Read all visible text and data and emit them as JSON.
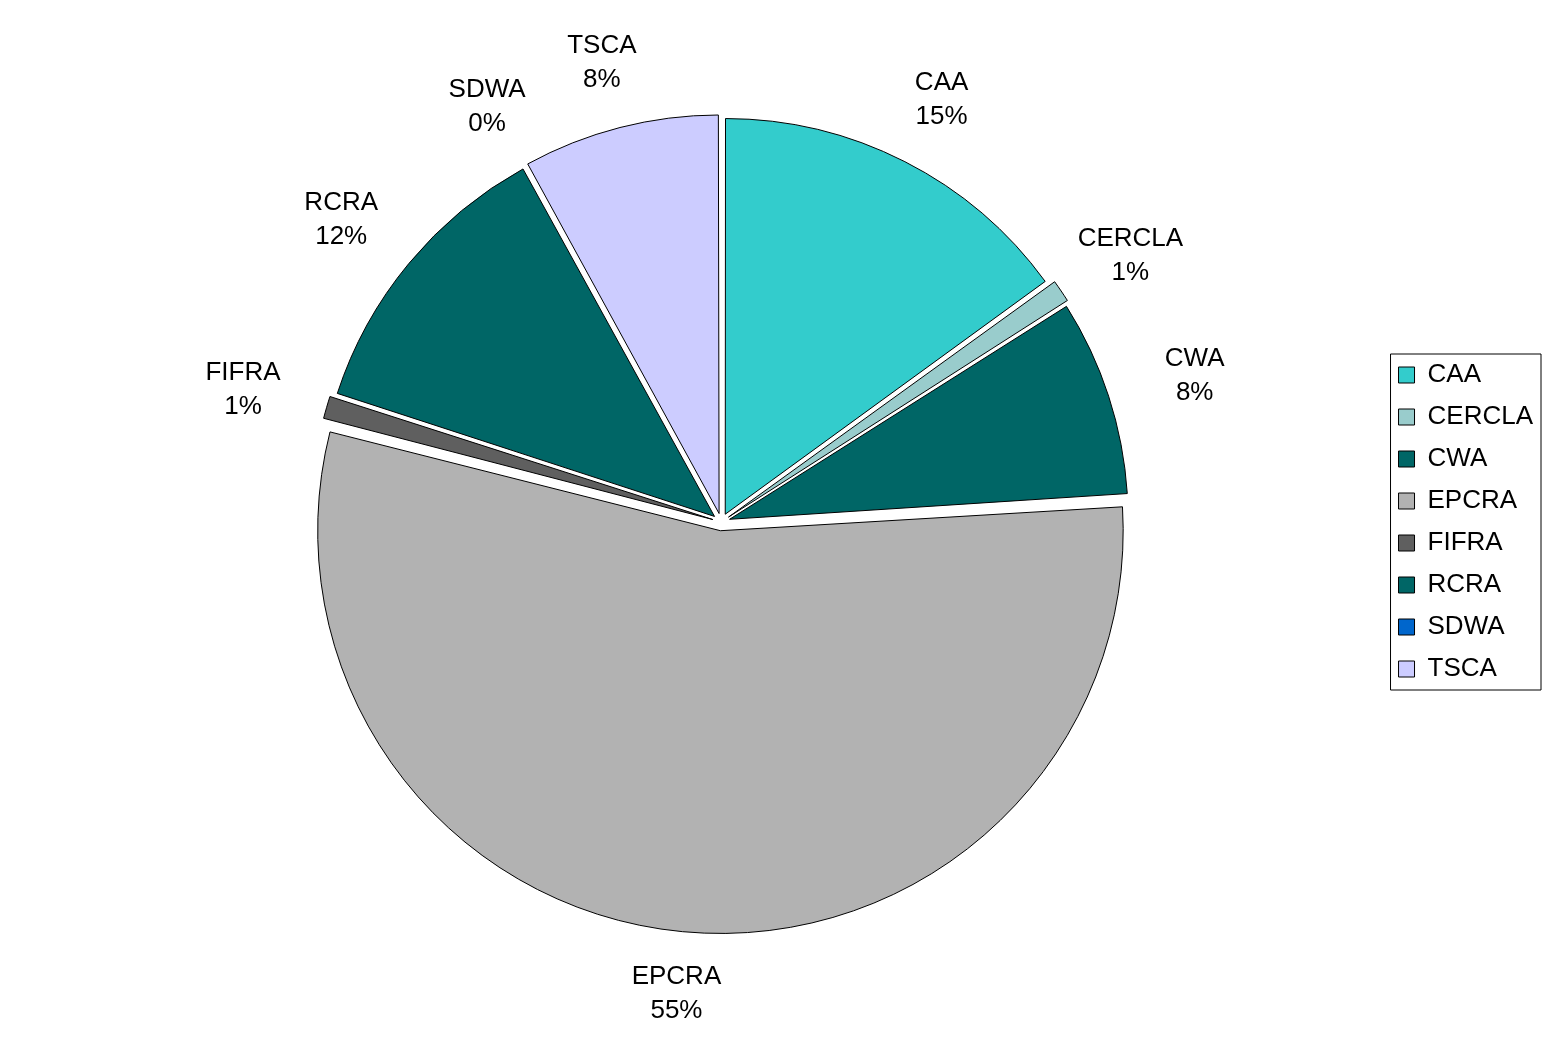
{
  "chart_data": {
    "type": "pie",
    "categories": [
      "CAA",
      "CERCLA",
      "CWA",
      "EPCRA",
      "FIFRA",
      "RCRA",
      "SDWA",
      "TSCA"
    ],
    "values": [
      15,
      1,
      8,
      55,
      1,
      12,
      0,
      8
    ],
    "value_labels": [
      "15%",
      "1%",
      "8%",
      "55%",
      "1%",
      "12%",
      "0%",
      "8%"
    ],
    "colors": [
      "#33cccc",
      "#99cccc",
      "#006666",
      "#b2b2b2",
      "#5f5f5f",
      "#006666",
      "#0066cc",
      "#ccccff"
    ],
    "legend": "right"
  }
}
